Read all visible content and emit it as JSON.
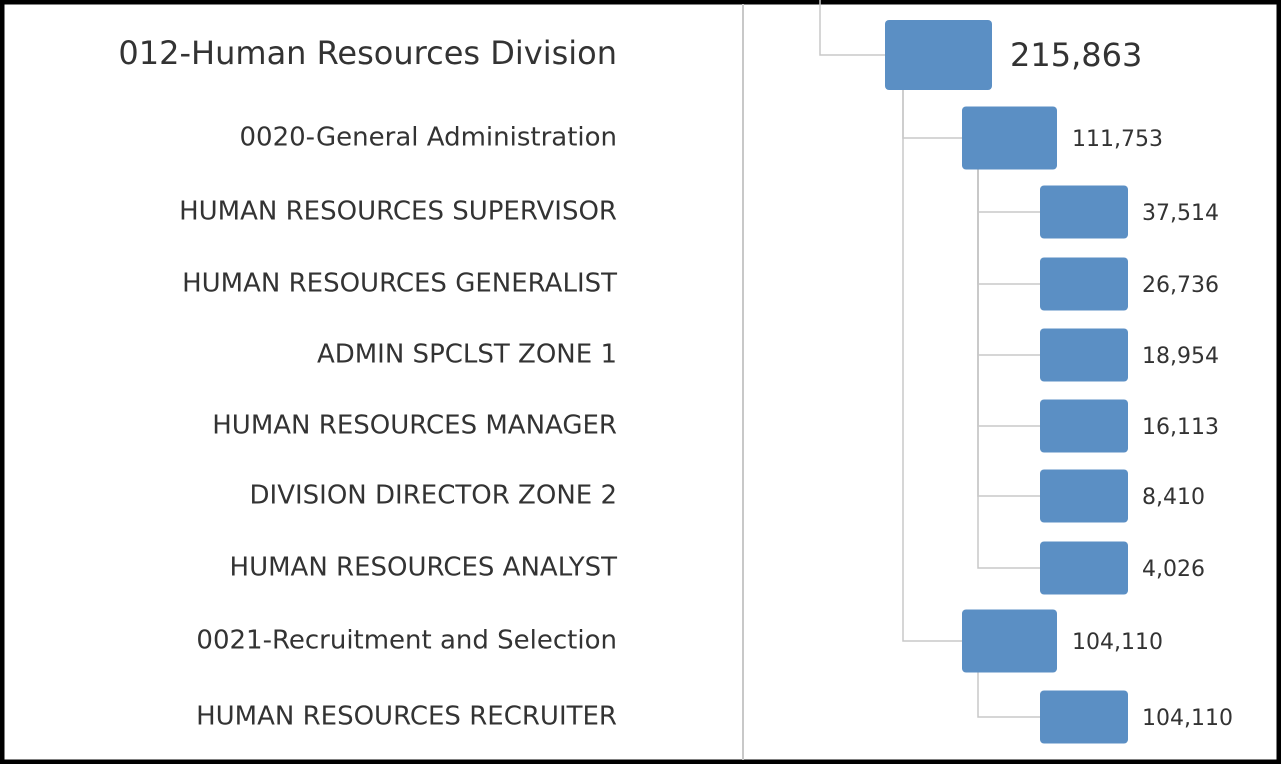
{
  "root": {
    "label": "012-Human Resources Division",
    "value": "215,863",
    "children": [
      {
        "label": "0020-General Administration",
        "value": "111,753",
        "children": [
          {
            "label": "HUMAN RESOURCES SUPERVISOR",
            "value": "37,514"
          },
          {
            "label": "HUMAN RESOURCES GENERALIST",
            "value": "26,736"
          },
          {
            "label": "ADMIN SPCLST ZONE 1",
            "value": "18,954"
          },
          {
            "label": "HUMAN RESOURCES MANAGER",
            "value": "16,113"
          },
          {
            "label": "DIVISION DIRECTOR ZONE 2",
            "value": "8,410"
          },
          {
            "label": "HUMAN RESOURCES ANALYST",
            "value": "4,026"
          }
        ]
      },
      {
        "label": "0021-Recruitment and Selection",
        "value": "104,110",
        "children": [
          {
            "label": "HUMAN RESOURCES RECRUITER",
            "value": "104,110"
          }
        ]
      }
    ]
  }
}
